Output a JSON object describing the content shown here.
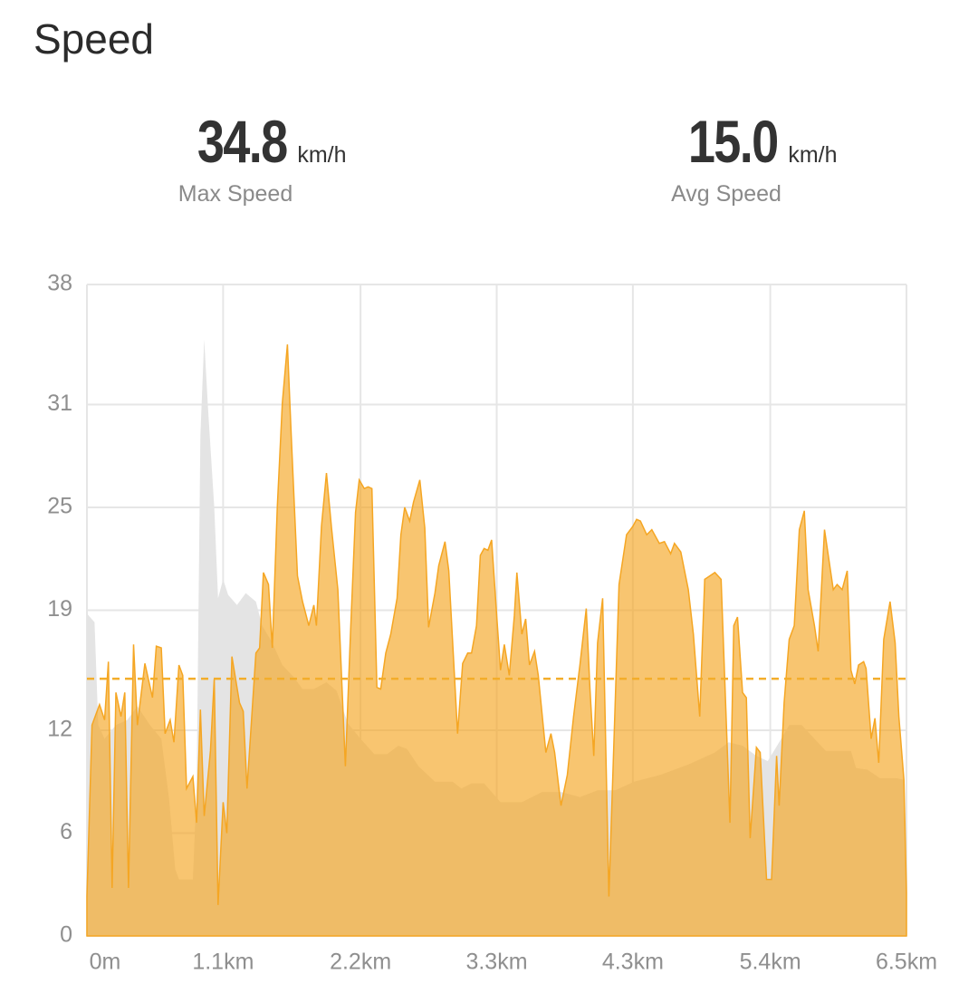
{
  "header": {
    "title": "Speed"
  },
  "stats": [
    {
      "value": "34.8",
      "unit": "km/h",
      "label": "Max Speed"
    },
    {
      "value": "15.0",
      "unit": "km/h",
      "label": "Avg Speed"
    }
  ],
  "chart_data": {
    "type": "area",
    "xlim": [
      0,
      6.5
    ],
    "xticks": [
      {
        "value": 0,
        "label": "0m"
      },
      {
        "value": 1.08,
        "label": "1.1km"
      },
      {
        "value": 2.17,
        "label": "2.2km"
      },
      {
        "value": 3.25,
        "label": "3.3km"
      },
      {
        "value": 4.33,
        "label": "4.3km"
      },
      {
        "value": 5.42,
        "label": "5.4km"
      },
      {
        "value": 6.5,
        "label": "6.5km"
      }
    ],
    "ylim": [
      0,
      38
    ],
    "yticks": [
      0,
      6,
      12,
      19,
      25,
      31,
      38
    ],
    "grid": true,
    "avg_line": 15,
    "avg_color": "#f3ad2a",
    "series": [
      {
        "color": "#e4e4e4",
        "x": [
          0,
          0.06,
          0.09,
          0.14,
          0.23,
          0.32,
          0.4,
          0.5,
          0.59,
          0.65,
          0.7,
          0.73,
          0.84,
          0.87,
          0.9,
          0.93,
          0.96,
          1.01,
          1.04,
          1.08,
          1.12,
          1.19,
          1.26,
          1.34,
          1.39,
          1.47,
          1.55,
          1.64,
          1.71,
          1.8,
          1.9,
          1.98,
          2.07,
          2.17,
          2.28,
          2.38,
          2.47,
          2.54,
          2.63,
          2.76,
          2.9,
          2.97,
          3.05,
          3.15,
          3.28,
          3.45,
          3.61,
          3.76,
          3.91,
          4.05,
          4.19,
          4.34,
          4.55,
          4.77,
          4.98,
          5.09,
          5.2,
          5.31,
          5.4,
          5.49,
          5.57,
          5.67,
          5.77,
          5.86,
          5.96,
          6.06,
          6.1,
          6.19,
          6.29,
          6.42,
          6.48,
          6.5
        ],
        "values": [
          18.8,
          18.3,
          12.3,
          11.5,
          12.3,
          12.6,
          13.4,
          12.3,
          11.5,
          8.1,
          3.9,
          3.3,
          3.3,
          8.6,
          29.2,
          34.8,
          30.8,
          25,
          19.7,
          20.8,
          19.9,
          19.3,
          20,
          19.5,
          18.1,
          17.1,
          15.8,
          15.1,
          14.4,
          14.4,
          14.8,
          14.3,
          12.4,
          11.5,
          10.6,
          10.6,
          11.1,
          10.9,
          9.9,
          9,
          9,
          8.6,
          8.9,
          8.9,
          7.8,
          7.8,
          8.4,
          8.4,
          8.1,
          8.5,
          8.5,
          9,
          9.4,
          10,
          10.7,
          11.3,
          11.1,
          10.5,
          10.2,
          11.3,
          12.3,
          12.3,
          11.5,
          10.8,
          10.8,
          10.8,
          9.8,
          9.7,
          9.2,
          9.2,
          9.1,
          1.2
        ]
      },
      {
        "color": "#f5a623",
        "x": [
          0,
          0.04,
          0.1,
          0.14,
          0.17,
          0.2,
          0.23,
          0.27,
          0.3,
          0.33,
          0.37,
          0.4,
          0.46,
          0.52,
          0.55,
          0.59,
          0.62,
          0.66,
          0.69,
          0.73,
          0.76,
          0.79,
          0.84,
          0.87,
          0.9,
          0.93,
          0.98,
          1.01,
          1.04,
          1.08,
          1.11,
          1.15,
          1.21,
          1.24,
          1.27,
          1.34,
          1.37,
          1.4,
          1.44,
          1.47,
          1.51,
          1.55,
          1.59,
          1.62,
          1.67,
          1.71,
          1.76,
          1.8,
          1.82,
          1.86,
          1.9,
          1.94,
          1.99,
          2.05,
          2.09,
          2.13,
          2.16,
          2.2,
          2.23,
          2.26,
          2.3,
          2.33,
          2.37,
          2.41,
          2.46,
          2.49,
          2.52,
          2.56,
          2.59,
          2.64,
          2.68,
          2.71,
          2.76,
          2.79,
          2.84,
          2.87,
          2.94,
          2.98,
          3.02,
          3.05,
          3.09,
          3.12,
          3.15,
          3.18,
          3.21,
          3.25,
          3.28,
          3.31,
          3.35,
          3.39,
          3.41,
          3.45,
          3.48,
          3.51,
          3.55,
          3.58,
          3.64,
          3.68,
          3.71,
          3.76,
          3.81,
          3.86,
          3.91,
          3.96,
          3.99,
          4.02,
          4.05,
          4.09,
          4.14,
          4.22,
          4.28,
          4.33,
          4.36,
          4.39,
          4.44,
          4.48,
          4.54,
          4.58,
          4.63,
          4.66,
          4.71,
          4.77,
          4.81,
          4.86,
          4.9,
          4.98,
          5.03,
          5.1,
          5.13,
          5.16,
          5.2,
          5.23,
          5.26,
          5.31,
          5.34,
          5.39,
          5.43,
          5.47,
          5.49,
          5.53,
          5.57,
          5.61,
          5.65,
          5.69,
          5.72,
          5.77,
          5.8,
          5.85,
          5.92,
          5.95,
          5.99,
          6.03,
          6.06,
          6.09,
          6.12,
          6.16,
          6.18,
          6.22,
          6.25,
          6.28,
          6.32,
          6.37,
          6.41,
          6.44,
          6.48,
          6.5
        ],
        "values": [
          2.3,
          12.3,
          13.5,
          12.6,
          16,
          2.8,
          14.2,
          12.8,
          14.2,
          2.8,
          17,
          12.3,
          15.9,
          13.9,
          16.9,
          16.8,
          11.8,
          12.6,
          11.3,
          15.8,
          15.2,
          8.6,
          9.3,
          6.6,
          13.2,
          7,
          10.8,
          15,
          1.8,
          7.8,
          6,
          16.3,
          13.6,
          13.1,
          8.6,
          16.5,
          16.8,
          21.2,
          20.5,
          16.8,
          25,
          31.1,
          34.5,
          29.2,
          21,
          19.5,
          18.1,
          19.3,
          18.1,
          23.9,
          27,
          23.8,
          20.2,
          9.9,
          17.6,
          24.7,
          26.6,
          26.1,
          26.2,
          26.1,
          14.5,
          14.4,
          16.5,
          17.6,
          19.7,
          23.4,
          25,
          24.2,
          25.3,
          26.6,
          23.8,
          18,
          20,
          21.6,
          23,
          21.3,
          11.8,
          15.9,
          16.5,
          16.5,
          18.1,
          22.2,
          22.6,
          22.5,
          23.1,
          18.7,
          15.5,
          17,
          15.2,
          18.7,
          21.2,
          17.6,
          18.5,
          15.8,
          16.6,
          15.2,
          10.7,
          11.8,
          10.7,
          7.6,
          9.4,
          12.8,
          15.8,
          19.1,
          14.4,
          10.5,
          17.1,
          19.7,
          2.3,
          20.5,
          23.4,
          23.9,
          24.3,
          24.2,
          23.4,
          23.7,
          22.9,
          23,
          22.3,
          22.9,
          22.4,
          20.2,
          17.6,
          12.8,
          20.8,
          21.2,
          20.8,
          6.6,
          18.1,
          18.6,
          14.2,
          13.9,
          5.7,
          11,
          10.7,
          3.3,
          3.3,
          10.5,
          7.6,
          13.6,
          17.3,
          18.1,
          23.7,
          24.8,
          20.2,
          18.1,
          16.6,
          23.7,
          20.2,
          20.5,
          20.2,
          21.3,
          15.5,
          14.7,
          15.8,
          16,
          15.6,
          11.5,
          12.7,
          10.1,
          17.3,
          19.5,
          17.1,
          12.8,
          9.1,
          2.5
        ]
      }
    ]
  }
}
